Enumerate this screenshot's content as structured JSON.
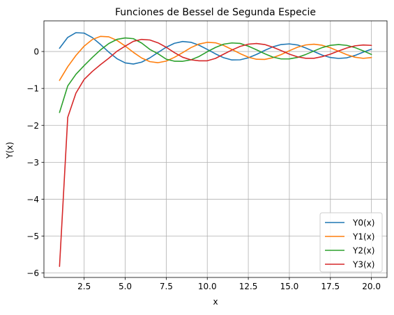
{
  "chart_data": {
    "type": "line",
    "title": "Funciones de Bessel de Segunda Especie",
    "xlabel": "x",
    "ylabel": "Y(x)",
    "xlim": [
      0.05,
      20.95
    ],
    "ylim": [
      -6.12,
      0.83
    ],
    "xticks": [
      2.5,
      5.0,
      7.5,
      10.0,
      12.5,
      15.0,
      17.5,
      20.0
    ],
    "xtick_labels": [
      "2.5",
      "5.0",
      "7.5",
      "10.0",
      "12.5",
      "15.0",
      "17.5",
      "20.0"
    ],
    "yticks": [
      0,
      -1,
      -2,
      -3,
      -4,
      -5,
      -6
    ],
    "ytick_labels": [
      "0",
      "−1",
      "−2",
      "−3",
      "−4",
      "−5",
      "−6"
    ],
    "grid": true,
    "legend_position": "lower right",
    "x": [
      1,
      1.5,
      2,
      2.5,
      3,
      3.5,
      4,
      4.5,
      5,
      5.5,
      6,
      6.5,
      7,
      7.5,
      8,
      8.5,
      9,
      9.5,
      10,
      10.5,
      11,
      11.5,
      12,
      12.5,
      13,
      13.5,
      14,
      14.5,
      15,
      15.5,
      16,
      16.5,
      17,
      17.5,
      18,
      18.5,
      19,
      19.5,
      20
    ],
    "series": [
      {
        "name": "Y0(x)",
        "color": "#1f77b4",
        "values": [
          0.088,
          0.382,
          0.51,
          0.498,
          0.377,
          0.189,
          -0.017,
          -0.195,
          -0.309,
          -0.339,
          -0.288,
          -0.173,
          -0.026,
          0.117,
          0.223,
          0.271,
          0.25,
          0.171,
          0.056,
          -0.064,
          -0.169,
          -0.229,
          -0.225,
          -0.171,
          -0.079,
          0.03,
          0.127,
          0.189,
          0.206,
          0.177,
          0.096,
          -0.001,
          -0.098,
          -0.163,
          -0.187,
          -0.171,
          -0.106,
          -0.018,
          0.063
        ]
      },
      {
        "name": "Y1(x)",
        "color": "#ff7f0e",
        "values": [
          -0.781,
          -0.412,
          -0.107,
          0.146,
          0.325,
          0.41,
          0.398,
          0.301,
          0.148,
          -0.023,
          -0.175,
          -0.274,
          -0.303,
          -0.26,
          -0.158,
          -0.03,
          0.104,
          0.203,
          0.249,
          0.236,
          0.164,
          0.055,
          -0.057,
          -0.154,
          -0.21,
          -0.214,
          -0.167,
          -0.084,
          0.021,
          0.117,
          0.178,
          0.198,
          0.169,
          0.101,
          0.007,
          -0.085,
          -0.155,
          -0.185,
          -0.165
        ]
      },
      {
        "name": "Y2(x)",
        "color": "#2ca02c",
        "values": [
          -1.651,
          -0.932,
          -0.617,
          -0.381,
          -0.16,
          0.045,
          0.216,
          0.329,
          0.368,
          0.347,
          0.23,
          0.057,
          -0.061,
          -0.208,
          -0.263,
          -0.265,
          -0.226,
          -0.135,
          -0.006,
          0.11,
          0.199,
          0.232,
          0.219,
          0.145,
          0.046,
          -0.06,
          -0.152,
          -0.201,
          -0.2,
          -0.16,
          -0.08,
          0.014,
          0.106,
          0.168,
          0.189,
          0.166,
          0.106,
          0.018,
          -0.08
        ]
      },
      {
        "name": "Y3(x)",
        "color": "#d62728",
        "values": [
          -5.821,
          -1.784,
          -1.127,
          -0.756,
          -0.539,
          -0.355,
          -0.182,
          0.007,
          0.146,
          0.276,
          0.328,
          0.312,
          0.235,
          0.114,
          -0.031,
          -0.155,
          -0.225,
          -0.252,
          -0.251,
          -0.187,
          -0.072,
          0.04,
          0.138,
          0.199,
          0.217,
          0.189,
          0.116,
          0.024,
          -0.071,
          -0.145,
          -0.184,
          -0.184,
          -0.139,
          -0.072,
          0.015,
          0.095,
          0.154,
          0.176,
          0.166
        ]
      }
    ]
  }
}
